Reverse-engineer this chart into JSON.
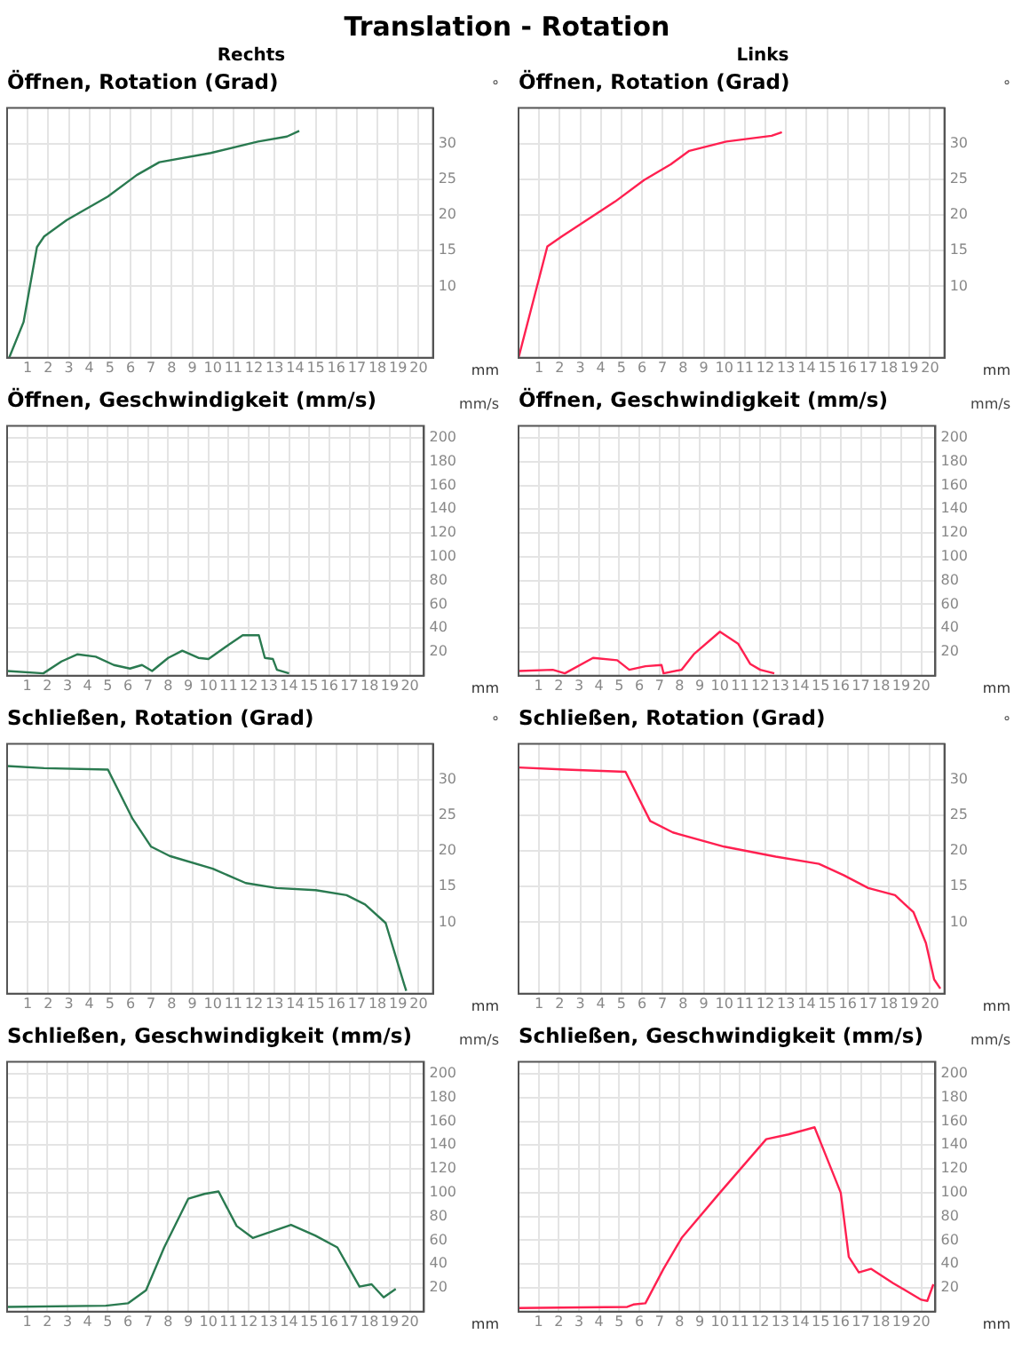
{
  "chart_data": [
    {
      "type": "other",
      "title": "Translation - Rotation"
    },
    {
      "type": "line",
      "subtitle": "Rechts",
      "title": "Öffnen, Rotation (Grad)",
      "xlabel": "mm",
      "ylabel": "°",
      "xlim": [
        0,
        20.7
      ],
      "xticks": [
        1,
        2,
        3,
        4,
        5,
        6,
        7,
        8,
        9,
        10,
        11,
        12,
        13,
        14,
        15,
        16,
        17,
        18,
        19,
        20
      ],
      "ylim": [
        0,
        35
      ],
      "yticks": [
        10,
        15,
        20,
        25,
        30
      ],
      "grid": true,
      "series": [
        {
          "color": "#2a7a50",
          "x": [
            0.1,
            0.8,
            1.45,
            1.8,
            2.9,
            4.9,
            6.3,
            7.4,
            9.9,
            12.2,
            13.6,
            14.2
          ],
          "values": [
            0,
            5,
            15.5,
            17,
            19.3,
            22.6,
            25.6,
            27.4,
            28.7,
            30.3,
            31,
            31.8
          ]
        }
      ]
    },
    {
      "type": "line",
      "subtitle": "Links",
      "title": "Öffnen, Rotation (Grad)",
      "xlabel": "mm",
      "ylabel": "°",
      "xlim": [
        0,
        20.7
      ],
      "xticks": [
        1,
        2,
        3,
        4,
        5,
        6,
        7,
        8,
        9,
        10,
        11,
        12,
        13,
        14,
        15,
        16,
        17,
        18,
        19,
        20
      ],
      "ylim": [
        0,
        35
      ],
      "yticks": [
        10,
        15,
        20,
        25,
        30
      ],
      "grid": true,
      "series": [
        {
          "color": "#ff2050",
          "x": [
            0,
            1.4,
            2.1,
            4.7,
            6.1,
            7.4,
            8.3,
            10.1,
            12.3,
            12.8
          ],
          "values": [
            0,
            15.6,
            17,
            21.9,
            24.9,
            27.1,
            29,
            30.3,
            31.1,
            31.6
          ]
        }
      ]
    },
    {
      "type": "line",
      "title": "Öffnen, Geschwindigkeit (mm/s)",
      "xlabel": "mm",
      "ylabel": "mm/s",
      "xlim": [
        0,
        20.7
      ],
      "xticks": [
        1,
        2,
        3,
        4,
        5,
        6,
        7,
        8,
        9,
        10,
        11,
        12,
        13,
        14,
        15,
        16,
        17,
        18,
        19,
        20
      ],
      "ylim": [
        0,
        210
      ],
      "yticks": [
        20,
        40,
        60,
        80,
        100,
        120,
        140,
        160,
        180,
        200
      ],
      "grid": true,
      "series": [
        {
          "color": "#2a7a50",
          "x": [
            0,
            1.8,
            2.7,
            3.5,
            4.4,
            5.3,
            6.1,
            6.7,
            7.2,
            8,
            8.7,
            9.5,
            10,
            11,
            11.7,
            12.5,
            12.8,
            13.2,
            13.4,
            14
          ],
          "values": [
            4,
            2,
            12,
            18,
            16,
            9,
            6,
            9,
            4,
            15,
            21,
            15,
            14,
            26,
            34,
            34,
            15,
            14,
            5,
            2
          ]
        }
      ]
    },
    {
      "type": "line",
      "title": "Öffnen, Geschwindigkeit (mm/s)",
      "xlabel": "mm",
      "ylabel": "mm/s",
      "xlim": [
        0,
        20.7
      ],
      "xticks": [
        1,
        2,
        3,
        4,
        5,
        6,
        7,
        8,
        9,
        10,
        11,
        12,
        13,
        14,
        15,
        16,
        17,
        18,
        19,
        20
      ],
      "ylim": [
        0,
        210
      ],
      "yticks": [
        20,
        40,
        60,
        80,
        100,
        120,
        140,
        160,
        180,
        200
      ],
      "grid": true,
      "series": [
        {
          "color": "#ff2050",
          "x": [
            0,
            1.7,
            2.3,
            3.7,
            4.9,
            5.5,
            6.3,
            7.1,
            7.2,
            8.1,
            8.7,
            10,
            10.9,
            11.5,
            12,
            12.7
          ],
          "values": [
            4,
            5,
            2,
            15,
            13,
            5,
            8,
            9,
            2,
            5,
            18,
            37,
            27,
            10,
            5,
            2
          ]
        }
      ]
    },
    {
      "type": "line",
      "title": "Schließen, Rotation (Grad)",
      "xlabel": "mm",
      "ylabel": "°",
      "xlim": [
        0,
        20.7
      ],
      "xticks": [
        1,
        2,
        3,
        4,
        5,
        6,
        7,
        8,
        9,
        10,
        11,
        12,
        13,
        14,
        15,
        16,
        17,
        18,
        19,
        20
      ],
      "ylim": [
        0,
        35
      ],
      "yticks": [
        10,
        15,
        20,
        25,
        30
      ],
      "grid": true,
      "series": [
        {
          "color": "#2a7a50",
          "x": [
            0,
            1.8,
            4.9,
            6.1,
            7,
            7.9,
            10,
            11.6,
            13.1,
            15,
            16.5,
            17.4,
            18.4,
            19.3,
            19.4
          ],
          "values": [
            31.9,
            31.6,
            31.4,
            24.5,
            20.6,
            19.3,
            17.5,
            15.5,
            14.8,
            14.5,
            13.8,
            12.5,
            9.9,
            1.3,
            0.4
          ]
        }
      ]
    },
    {
      "type": "line",
      "title": "Schließen, Rotation (Grad)",
      "xlabel": "mm",
      "ylabel": "°",
      "xlim": [
        0,
        20.7
      ],
      "xticks": [
        1,
        2,
        3,
        4,
        5,
        6,
        7,
        8,
        9,
        10,
        11,
        12,
        13,
        14,
        15,
        16,
        17,
        18,
        19,
        20
      ],
      "ylim": [
        0,
        35
      ],
      "yticks": [
        10,
        15,
        20,
        25,
        30
      ],
      "grid": true,
      "series": [
        {
          "color": "#ff2050",
          "x": [
            0,
            2.3,
            5.2,
            6.4,
            7.5,
            10,
            12.5,
            14.6,
            15.8,
            17,
            18.3,
            19.2,
            19.8,
            20.2,
            20.5
          ],
          "values": [
            31.7,
            31.4,
            31.1,
            24.2,
            22.6,
            20.6,
            19.2,
            18.2,
            16.6,
            14.8,
            13.8,
            11.4,
            7.1,
            2,
            0.7
          ]
        }
      ]
    },
    {
      "type": "line",
      "title": "Schließen, Geschwindigkeit (mm/s)",
      "xlabel": "mm",
      "ylabel": "mm/s",
      "xlim": [
        0,
        20.7
      ],
      "xticks": [
        1,
        2,
        3,
        4,
        5,
        6,
        7,
        8,
        9,
        10,
        11,
        12,
        13,
        14,
        15,
        16,
        17,
        18,
        19,
        20
      ],
      "ylim": [
        0,
        210
      ],
      "yticks": [
        20,
        40,
        60,
        80,
        100,
        120,
        140,
        160,
        180,
        200
      ],
      "grid": true,
      "series": [
        {
          "color": "#2a7a50",
          "x": [
            0,
            4.9,
            6,
            6.9,
            7.8,
            9,
            9.8,
            10.5,
            11.4,
            12.2,
            14.1,
            15.3,
            16.4,
            17.5,
            18.1,
            18.7,
            19.3
          ],
          "values": [
            4,
            5,
            7,
            18,
            54,
            95,
            99,
            101,
            72,
            62,
            73,
            64,
            54,
            21,
            23,
            12,
            19
          ]
        }
      ]
    },
    {
      "type": "line",
      "title": "Schließen, Geschwindigkeit (mm/s)",
      "xlabel": "mm",
      "ylabel": "mm/s",
      "xlim": [
        0,
        20.7
      ],
      "xticks": [
        1,
        2,
        3,
        4,
        5,
        6,
        7,
        8,
        9,
        10,
        11,
        12,
        13,
        14,
        15,
        16,
        17,
        18,
        19,
        20
      ],
      "ylim": [
        0,
        210
      ],
      "yticks": [
        20,
        40,
        60,
        80,
        100,
        120,
        140,
        160,
        180,
        200
      ],
      "grid": true,
      "series": [
        {
          "color": "#ff2050",
          "x": [
            0,
            5.4,
            5.7,
            6.3,
            7.2,
            8.1,
            10,
            12.3,
            13.4,
            14.7,
            16,
            16.4,
            16.9,
            17.5,
            18.6,
            20,
            20.3,
            20.6
          ],
          "values": [
            3,
            4,
            6,
            7,
            36,
            62,
            100,
            145,
            149,
            155,
            100,
            46,
            33,
            36,
            24,
            10,
            9,
            23
          ]
        }
      ]
    }
  ]
}
